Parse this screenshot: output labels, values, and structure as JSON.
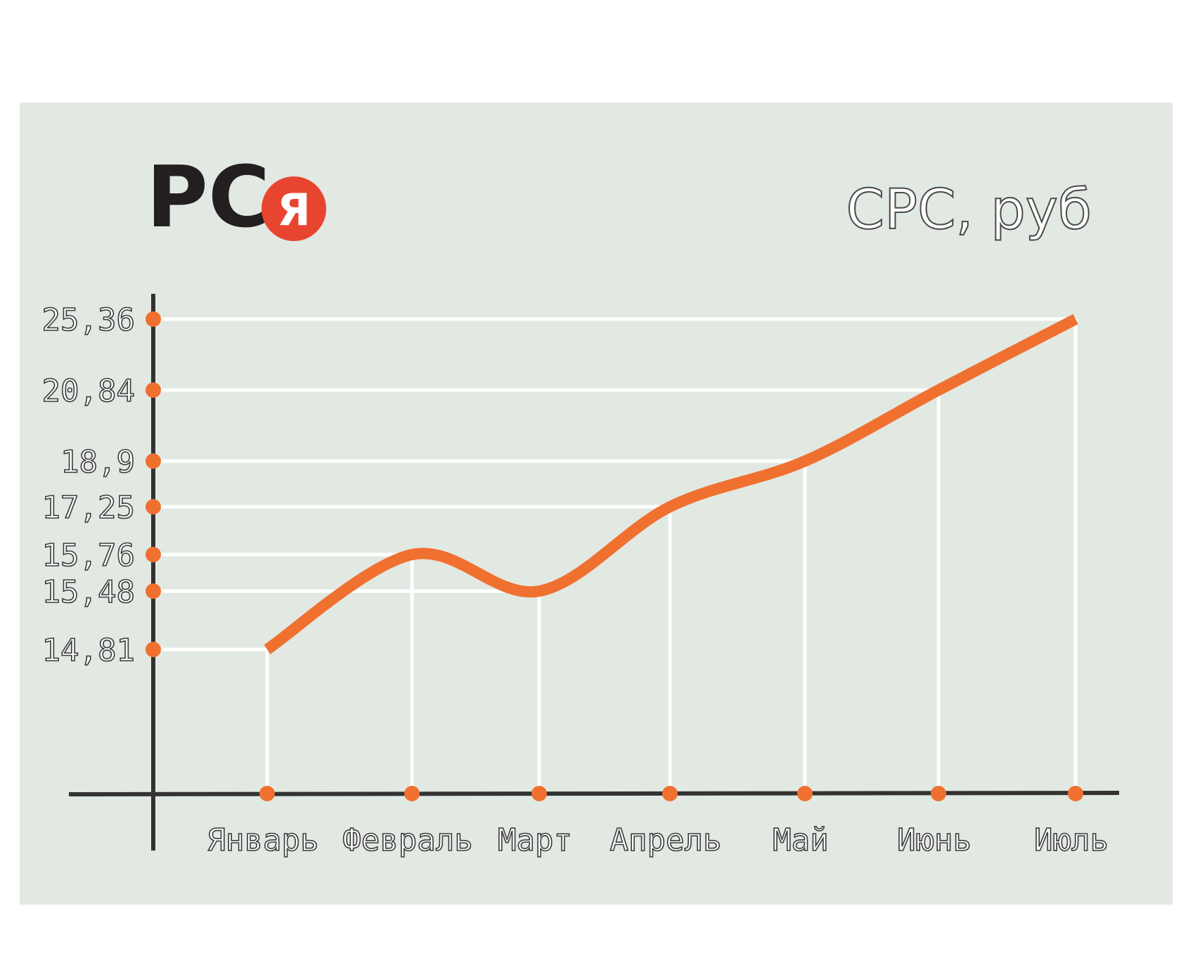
{
  "brand": {
    "logo_text": "РС",
    "badge_letter": "Я"
  },
  "colors": {
    "panel": "#e2e8e2",
    "accent": "#f07030",
    "axis": "#333333",
    "grid": "#ffffff",
    "badge": "#e84530",
    "logo": "#231f20"
  },
  "chart_data": {
    "type": "line",
    "title": "CPC, руб",
    "xlabel": "",
    "ylabel": "",
    "categories": [
      "Январь",
      "Февраль",
      "Март",
      "Апрель",
      "Май",
      "Июнь",
      "Июль"
    ],
    "series": [
      {
        "values": [
          14.81,
          15.76,
          15.48,
          17.25,
          18.9,
          20.84,
          25.36
        ]
      }
    ],
    "y_tick_labels": [
      "25,36",
      "20,84",
      "18,9",
      "17,25",
      "15,76",
      "15,48",
      "14,81"
    ],
    "y_scale": "non-uniform (ticks placed at data values)",
    "grid": true,
    "legend": "none"
  }
}
